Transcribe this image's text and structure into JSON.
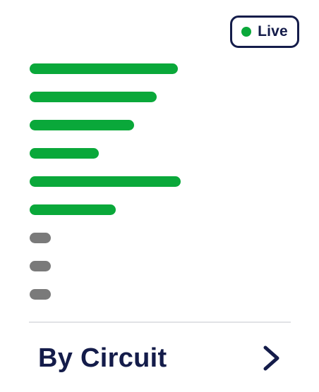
{
  "status_badge": {
    "label": "Live",
    "dot_color": "#0aa83a",
    "border_color": "#141c4a"
  },
  "bars": [
    {
      "level": 1.0,
      "state": "active"
    },
    {
      "level": 0.857,
      "state": "active"
    },
    {
      "level": 0.705,
      "state": "active"
    },
    {
      "level": 0.467,
      "state": "active"
    },
    {
      "level": 1.019,
      "state": "active"
    },
    {
      "level": 0.581,
      "state": "active"
    },
    {
      "level": 0.143,
      "state": "inactive"
    },
    {
      "level": 0.143,
      "state": "inactive"
    },
    {
      "level": 0.143,
      "state": "inactive"
    }
  ],
  "colors": {
    "active": "#0aa83a",
    "inactive": "#7a7a7a",
    "text": "#141c4a",
    "divider": "#e1e3e6"
  },
  "footer": {
    "title": "By Circuit",
    "icon": "chevron-right-icon"
  }
}
